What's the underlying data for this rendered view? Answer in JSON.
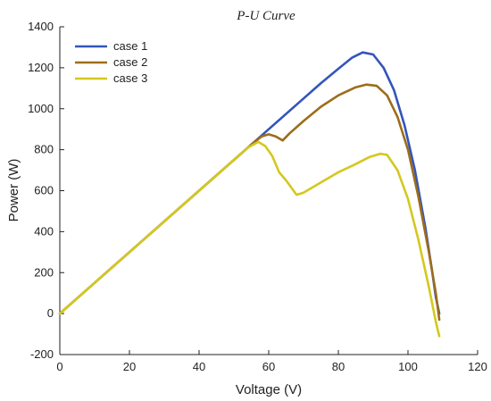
{
  "chart_data": {
    "type": "line",
    "title": "P-U Curve",
    "xlabel": "Voltage (V)",
    "ylabel": "Power (W)",
    "xlim": [
      0,
      120
    ],
    "ylim": [
      -200,
      1400
    ],
    "xticks": [
      0,
      20,
      40,
      60,
      80,
      100,
      120
    ],
    "yticks": [
      -200,
      0,
      200,
      400,
      600,
      800,
      1000,
      1200,
      1400
    ],
    "grid": false,
    "legend_position": "top-left",
    "series": [
      {
        "name": "case 1",
        "color": "#3355bb",
        "x": [
          0,
          10,
          20,
          30,
          40,
          50,
          60,
          70,
          75,
          80,
          84,
          87,
          90,
          93,
          96,
          99,
          102,
          105,
          107,
          108,
          109
        ],
        "y": [
          0,
          150,
          300,
          450,
          600,
          750,
          900,
          1050,
          1125,
          1195,
          1250,
          1275,
          1265,
          1200,
          1090,
          920,
          700,
          420,
          200,
          80,
          0
        ]
      },
      {
        "name": "case 2",
        "color": "#9c6d1a",
        "x": [
          0,
          10,
          20,
          30,
          40,
          50,
          55,
          58,
          60,
          62,
          64,
          66,
          70,
          75,
          80,
          85,
          88,
          91,
          94,
          97,
          100,
          103,
          106,
          108,
          109
        ],
        "y": [
          0,
          150,
          300,
          450,
          600,
          750,
          825,
          865,
          875,
          865,
          845,
          880,
          940,
          1010,
          1065,
          1105,
          1118,
          1112,
          1065,
          960,
          800,
          570,
          300,
          100,
          -30
        ]
      },
      {
        "name": "case 3",
        "color": "#d4c81e",
        "x": [
          0,
          10,
          20,
          30,
          40,
          50,
          54,
          57,
          59,
          61,
          63,
          65,
          68,
          70,
          75,
          80,
          85,
          89,
          92,
          94,
          97,
          100,
          103,
          106,
          108,
          109
        ],
        "y": [
          0,
          150,
          300,
          450,
          600,
          750,
          810,
          838,
          818,
          770,
          690,
          650,
          580,
          590,
          640,
          690,
          730,
          765,
          780,
          775,
          700,
          560,
          360,
          130,
          -40,
          -110
        ]
      }
    ]
  }
}
